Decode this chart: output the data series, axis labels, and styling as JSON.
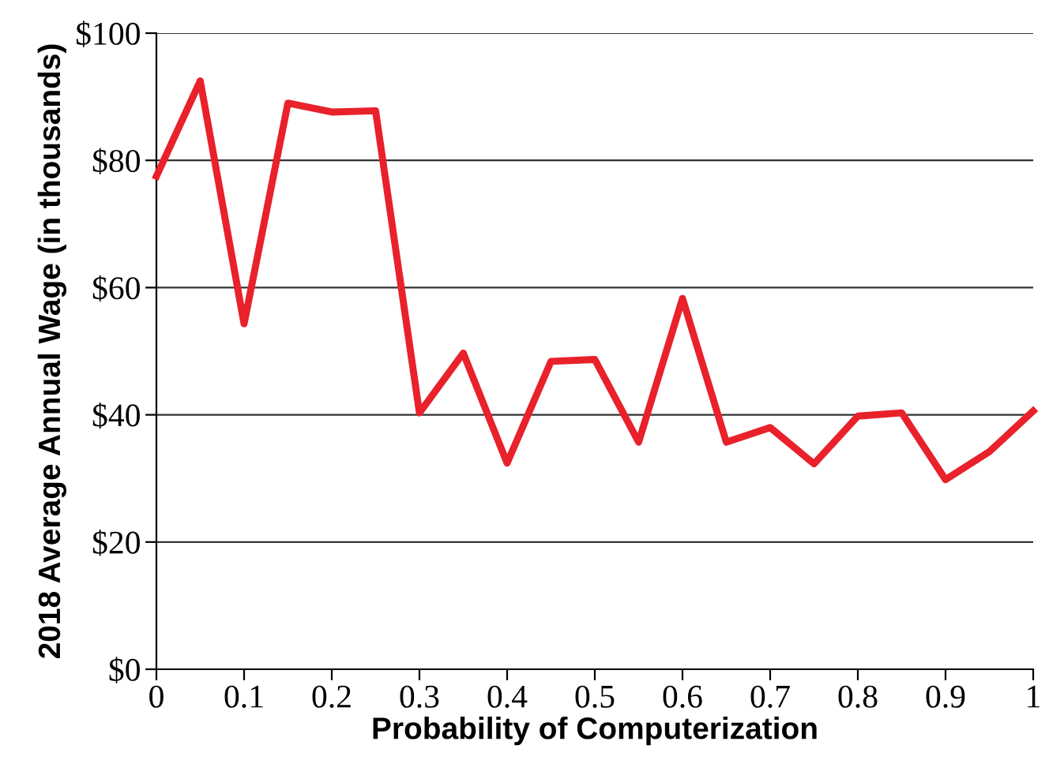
{
  "chart_data": {
    "type": "line",
    "xlabel": "Probability of Computerization",
    "ylabel": "2018 Average Annual Wage (in thousands)",
    "x": [
      0,
      0.05,
      0.1,
      0.15,
      0.2,
      0.25,
      0.3,
      0.35,
      0.4,
      0.45,
      0.5,
      0.55,
      0.6,
      0.65,
      0.7,
      0.75,
      0.8,
      0.85,
      0.9,
      0.95,
      1
    ],
    "series": [
      {
        "color": "#e8212b",
        "values": [
          77.5,
          92.5,
          54.3,
          89,
          87.6,
          87.8,
          40.3,
          49.7,
          32.4,
          48.4,
          48.7,
          35.7,
          58.3,
          35.7,
          38,
          32.3,
          39.8,
          40.3,
          29.8,
          34.2,
          40.6
        ]
      }
    ],
    "xlim": [
      0,
      1
    ],
    "xticks": [
      0,
      0.1,
      0.2,
      0.3,
      0.4,
      0.5,
      0.6,
      0.7,
      0.8,
      0.9,
      1
    ],
    "ylim": [
      0,
      100
    ],
    "yticks": [
      {
        "value": 0,
        "label": "$0"
      },
      {
        "value": 20,
        "label": "$20"
      },
      {
        "value": 40,
        "label": "$40"
      },
      {
        "value": 60,
        "label": "$60"
      },
      {
        "value": 80,
        "label": "$80"
      },
      {
        "value": 100,
        "label": "$100"
      }
    ],
    "grid": "y",
    "legend": false,
    "marker": "none",
    "line_style": "solid"
  }
}
